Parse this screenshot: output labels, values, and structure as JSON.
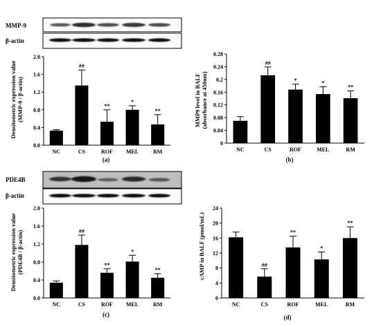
{
  "panels": [
    {
      "id": "a",
      "caption": "(a)",
      "ylabel_lines": [
        "Densitometric expression value",
        "(MMP-9 / β-actin)"
      ],
      "blot_labels": [
        "MMP-9",
        "β-actin"
      ]
    },
    {
      "id": "b",
      "caption": "(b)",
      "ylabel_lines": [
        "MMP9 level  in BALF",
        "(absorbance at 450nm)"
      ]
    },
    {
      "id": "c",
      "caption": "(c)",
      "ylabel_lines": [
        "Densitometric expression value",
        "(PDE4B / β-actin)"
      ],
      "blot_labels": [
        "PDE4B",
        "β-actin"
      ]
    },
    {
      "id": "d",
      "caption": "(d)",
      "ylabel_lines": [
        "cAMP in BALF (pmol/mL)"
      ]
    }
  ],
  "chart_data": [
    {
      "panel": "a",
      "type": "bar",
      "categories": [
        "NC",
        "CS",
        "ROF",
        "MEL",
        "RM"
      ],
      "values": [
        0.33,
        1.35,
        0.53,
        0.8,
        0.47
      ],
      "errors": [
        0.02,
        0.35,
        0.27,
        0.09,
        0.22
      ],
      "annotations": [
        "",
        "##",
        "**",
        "*",
        "**"
      ],
      "ylim": [
        0,
        2.0
      ],
      "yticks": [
        "0.0",
        "0.4",
        "0.8",
        "1.2",
        "1.6",
        "2.0"
      ],
      "bar_color": "#000000"
    },
    {
      "panel": "b",
      "type": "bar",
      "categories": [
        "NC",
        "CS",
        "ROF",
        "MEL",
        "RM"
      ],
      "values": [
        0.07,
        0.213,
        0.168,
        0.154,
        0.141
      ],
      "errors": [
        0.013,
        0.026,
        0.017,
        0.023,
        0.023
      ],
      "annotations": [
        "",
        "##",
        "*",
        "*",
        "**"
      ],
      "ylim": [
        0,
        0.28
      ],
      "yticks": [
        "0",
        "0.04",
        "0.08",
        "0.12",
        "0.16",
        "0.2",
        "0.24",
        "0.28"
      ],
      "bar_color": "#000000"
    },
    {
      "panel": "c",
      "type": "bar",
      "categories": [
        "NC",
        "CS",
        "ROF",
        "MEL",
        "RM"
      ],
      "values": [
        0.34,
        1.18,
        0.56,
        0.81,
        0.45
      ],
      "errors": [
        0.04,
        0.22,
        0.09,
        0.14,
        0.09
      ],
      "annotations": [
        "",
        "##",
        "**",
        "*",
        "**"
      ],
      "ylim": [
        0,
        2.0
      ],
      "yticks": [
        "0.0",
        "0.4",
        "0.8",
        "1.2",
        "1.6",
        "2.0"
      ],
      "bar_color": "#000000"
    },
    {
      "panel": "d",
      "type": "bar",
      "categories": [
        "NC",
        "CS",
        "ROF",
        "MEL",
        "RM"
      ],
      "values": [
        16.2,
        5.7,
        13.5,
        10.3,
        16.0
      ],
      "errors": [
        1.4,
        2.1,
        3.0,
        2.0,
        3.0
      ],
      "annotations": [
        "",
        "##",
        "**",
        "*",
        "**"
      ],
      "ylim": [
        0,
        24
      ],
      "yticks": [
        "0",
        "4",
        "8",
        "12",
        "16",
        "20",
        "24"
      ],
      "bar_color": "#000000"
    }
  ]
}
